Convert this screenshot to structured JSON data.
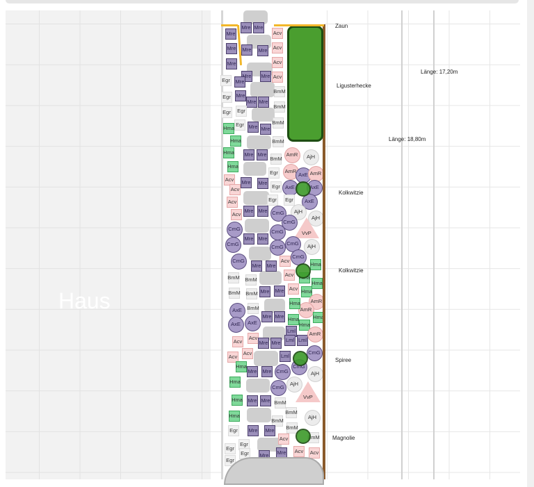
{
  "house": {
    "label": "Haus"
  },
  "labels": {
    "fence": "Zaun",
    "hedge": "Ligusterhecke",
    "tree1": "Kolkwitzie",
    "tree2": "Kolkwitzie",
    "tree3": "Spiree",
    "tree4": "Magnolie",
    "length1": "Länge: 17,20m",
    "length2": "Länge: 18,80m"
  },
  "plant_styles": {
    "Mre": {
      "bg": "#9b8fba",
      "border": "#4a3d6b",
      "shape": "square"
    },
    "Acv": {
      "bg": "#f9d6d6",
      "border": "#e6a8a8",
      "shape": "square"
    },
    "Egr": {
      "bg": "#f1f1f1",
      "border": "#dcdcdc",
      "shape": "square"
    },
    "BmM": {
      "bg": "#eeeeee",
      "border": "#d8d8d8",
      "shape": "square"
    },
    "Hma": {
      "bg": "#7fd99a",
      "border": "#3cab5c",
      "shape": "square"
    },
    "Lml": {
      "bg": "#9b8fba",
      "border": "#4a3d6b",
      "shape": "square"
    },
    "AmR": {
      "bg": "#f7cccc",
      "border": "#e2a4a4",
      "shape": "circle"
    },
    "AjH": {
      "bg": "#ececec",
      "border": "#d0d0d0",
      "shape": "circle"
    },
    "AxE": {
      "bg": "#a89bc8",
      "border": "#5b4d80",
      "shape": "circle"
    },
    "CmG": {
      "bg": "#a89bc8",
      "border": "#5b4d80",
      "shape": "circle"
    },
    "VvP": {
      "bg": "#f5c9c9",
      "border": "#e0a0a0",
      "shape": "triangle"
    }
  },
  "plants": [
    "Mre",
    "Mre",
    "Acv",
    "Mre",
    "Mre",
    "Mre",
    "Mre",
    "Acv",
    "Mre",
    "Acv",
    "Mre",
    "Mre",
    "Acv",
    "Egr",
    "Mre",
    "BmM",
    "Egr",
    "Mre",
    "Mre",
    "Mre",
    "BmM",
    "Egr",
    "Egr",
    "Mre",
    "Mre",
    "BmM",
    "Egr",
    "Hma",
    "Hma",
    "BmM",
    "Hma",
    "Mre",
    "Mre",
    "BmM",
    "AmR",
    "AjH",
    "Hma",
    "Egr",
    "AmR",
    "AxE",
    "AmR",
    "Acv",
    "Mre",
    "Mre",
    "Egr",
    "AxE",
    "AxE",
    "Acv",
    "Egr",
    "Egr",
    "AxE",
    "Acv",
    "Mre",
    "Mre",
    "CmG",
    "AjH",
    "AjH",
    "Acv",
    "CmG",
    "CmG",
    "VvP",
    "Mre",
    "Mre",
    "CmG",
    "CmG",
    "CmG",
    "AjH",
    "CmG",
    "CmG",
    "Mre",
    "Mre",
    "Acv",
    "CmG",
    "Hma",
    "BmM",
    "BmM",
    "Acv",
    "Hma",
    "Hma",
    "Hma",
    "BmM",
    "BmM",
    "Mre",
    "Mre",
    "Acv",
    "AmR",
    "AmR",
    "Hma",
    "AxE",
    "BmM",
    "Mre",
    "Mre",
    "Hma",
    "Hma",
    "Hma",
    "AxE",
    "AxE",
    "Lml",
    "Lml",
    "AmR",
    "Acv",
    "Acv",
    "Mre",
    "Mre",
    "Lml",
    "Acv",
    "Acv",
    "Lml",
    "CmG",
    "Hma",
    "Mre",
    "Mre",
    "CmG",
    "CmG",
    "AjH",
    "Hma",
    "CmG",
    "AjH",
    "Hma",
    "Mre",
    "Mre",
    "BmM",
    "VvP",
    "Hma",
    "BmM",
    "BmM",
    "AjH",
    "Egr",
    "Mre",
    "Mre",
    "BmM",
    "Acv",
    "BmM",
    "Egr",
    "Egr",
    "Egr",
    "Mre",
    "Mre",
    "Acv",
    "Acv",
    "Egr"
  ]
}
